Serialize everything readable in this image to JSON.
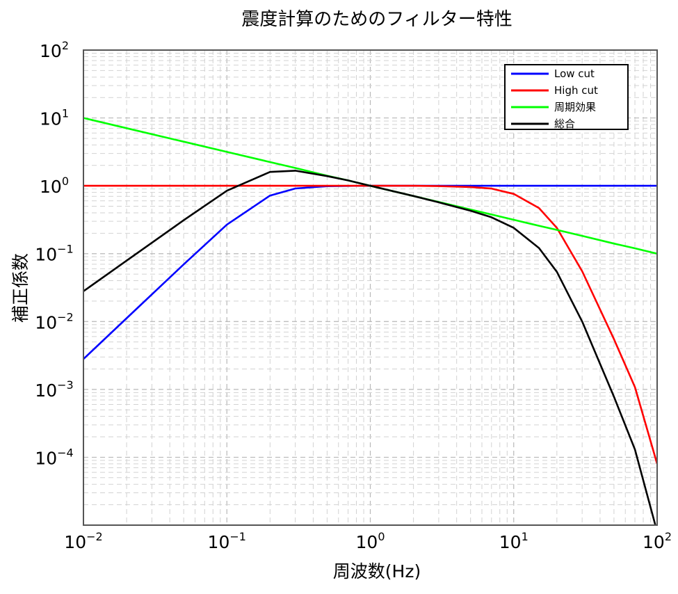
{
  "chart_data": {
    "type": "line",
    "title": "震度計算のためのフィルター特性",
    "xlabel": "周波数(Hz)",
    "ylabel": "補正係数",
    "x_scale": "log",
    "y_scale": "log",
    "xlim": [
      0.01,
      100
    ],
    "ylim": [
      1e-05,
      100
    ],
    "grid": true,
    "legend_position": "top-right",
    "x_ticks": [
      {
        "base": "10",
        "exp": "−2",
        "value": 0.01
      },
      {
        "base": "10",
        "exp": "−1",
        "value": 0.1
      },
      {
        "base": "10",
        "exp": "0",
        "value": 1
      },
      {
        "base": "10",
        "exp": "1",
        "value": 10
      },
      {
        "base": "10",
        "exp": "2",
        "value": 100
      }
    ],
    "y_ticks": [
      {
        "base": "10",
        "exp": "2",
        "value": 100
      },
      {
        "base": "10",
        "exp": "1",
        "value": 10
      },
      {
        "base": "10",
        "exp": "0",
        "value": 1
      },
      {
        "base": "10",
        "exp": "−1",
        "value": 0.1
      },
      {
        "base": "10",
        "exp": "−2",
        "value": 0.01
      },
      {
        "base": "10",
        "exp": "−3",
        "value": 0.001
      },
      {
        "base": "10",
        "exp": "−4",
        "value": 0.0001
      }
    ],
    "x": [
      0.01,
      0.02,
      0.05,
      0.1,
      0.2,
      0.3,
      0.5,
      0.7,
      1,
      2,
      3,
      5,
      7,
      10,
      15,
      20,
      30,
      50,
      70,
      100
    ],
    "series": [
      {
        "name": "Low cut",
        "color": "#0000ff",
        "values": [
          0.0028,
          0.0112,
          0.0696,
          0.268,
          0.717,
          0.914,
          0.988,
          0.997,
          1.0,
          1.0,
          1.0,
          1.0,
          1.0,
          1.0,
          1.0,
          1.0,
          1.0,
          1.0,
          1.0,
          1.0
        ]
      },
      {
        "name": "High cut",
        "color": "#ff0000",
        "values": [
          1.0,
          1.0,
          1.0,
          1.0,
          1.0,
          1.0,
          1.0,
          1.0,
          1.0,
          1.0,
          0.99,
          0.96,
          0.91,
          0.76,
          0.47,
          0.24,
          0.055,
          0.0055,
          0.00108,
          8e-05
        ]
      },
      {
        "name": "周期効果",
        "color": "#00ff00",
        "values": [
          10.0,
          7.07,
          4.47,
          3.16,
          2.24,
          1.83,
          1.41,
          1.2,
          1.0,
          0.707,
          0.577,
          0.447,
          0.378,
          0.316,
          0.258,
          0.224,
          0.183,
          0.141,
          0.12,
          0.1
        ]
      },
      {
        "name": "総合",
        "color": "#000000",
        "values": [
          0.028,
          0.079,
          0.311,
          0.847,
          1.6,
          1.67,
          1.39,
          1.2,
          1.0,
          0.707,
          0.571,
          0.429,
          0.344,
          0.24,
          0.121,
          0.054,
          0.01,
          0.00078,
          0.00013,
          8e-06
        ]
      }
    ]
  }
}
